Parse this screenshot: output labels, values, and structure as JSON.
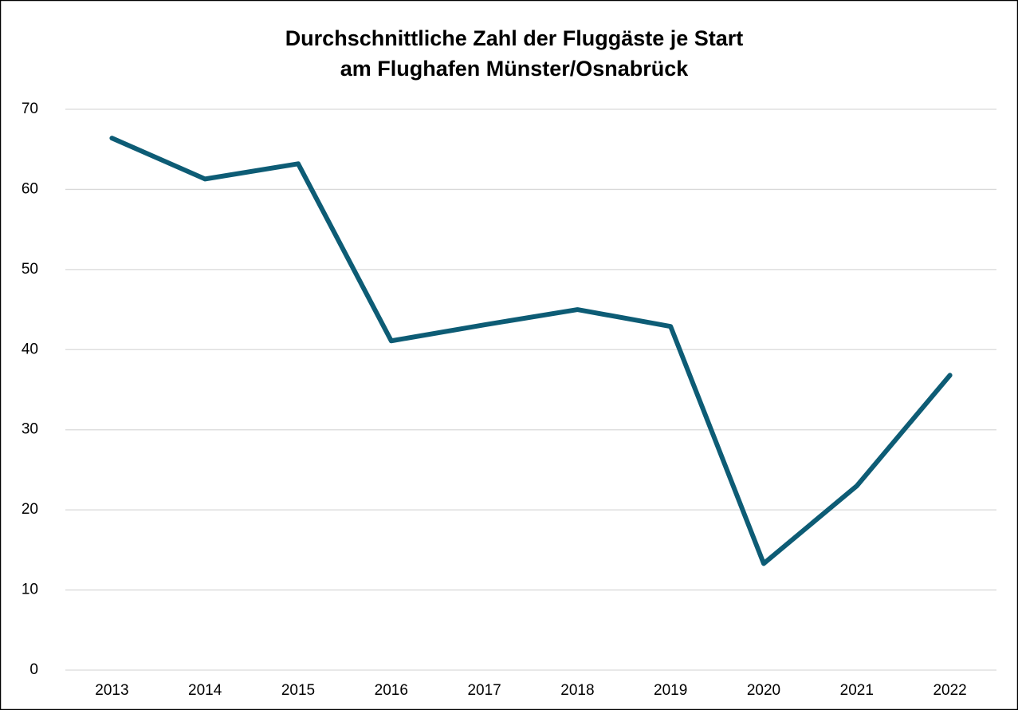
{
  "chart_data": {
    "type": "line",
    "title": [
      "Durchschnittliche Zahl der Fluggäste je Start",
      "am Flughafen Münster/Osnabrück"
    ],
    "categories": [
      "2013",
      "2014",
      "2015",
      "2016",
      "2017",
      "2018",
      "2019",
      "2020",
      "2021",
      "2022"
    ],
    "series": [
      {
        "color": "#0d5c75",
        "values": [
          66.4,
          61.3,
          63.2,
          41.1,
          43.1,
          45.0,
          42.9,
          13.3,
          23.0,
          36.8
        ]
      }
    ],
    "ylim": [
      0,
      70
    ],
    "yticks": [
      0,
      10,
      20,
      30,
      40,
      50,
      60,
      70
    ],
    "grid": true
  }
}
